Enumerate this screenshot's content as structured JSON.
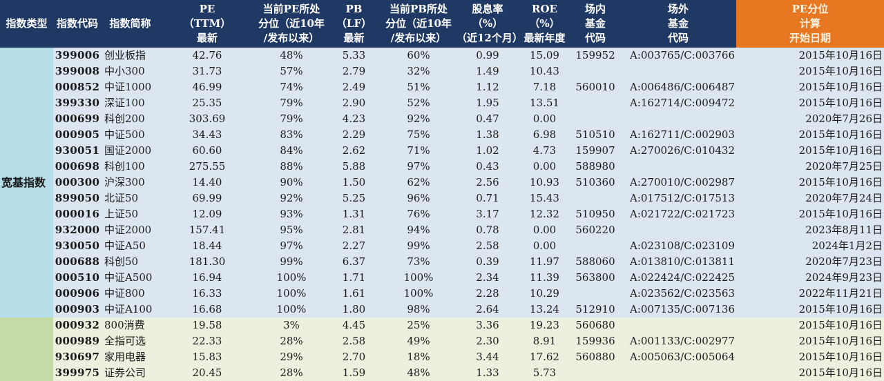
{
  "headers": [
    {
      "lines": [
        "指数类型"
      ]
    },
    {
      "lines": [
        "指数代码"
      ]
    },
    {
      "lines": [
        "指数简称"
      ]
    },
    {
      "lines": [
        "PE",
        "（TTM）",
        "最新"
      ]
    },
    {
      "lines": [
        "当前PE所处",
        "分位（近10年",
        "/发布以来）"
      ]
    },
    {
      "lines": [
        "PB",
        "（LF）",
        "最新"
      ]
    },
    {
      "lines": [
        "当前PB所处",
        "分位（近10年",
        "/发布以来）"
      ]
    },
    {
      "lines": [
        "股息率",
        "（%）",
        "（近12个月）"
      ]
    },
    {
      "lines": [
        "ROE",
        "（%）",
        "最新年度"
      ]
    },
    {
      "lines": [
        "场内",
        "基金",
        "代码"
      ]
    },
    {
      "lines": [
        "场外",
        "基金",
        "代码"
      ]
    },
    {
      "lines": [
        "PE分位",
        "计算",
        "开始日期"
      ]
    }
  ],
  "categories": {
    "broad": "宽基指数",
    "industry": ""
  },
  "rows": [
    {
      "code": "399006",
      "name": "创业板指",
      "pe": "42.76",
      "pe_pct": "48%",
      "pb": "5.33",
      "pb_pct": "60%",
      "dividend": "0.99",
      "roe": "15.09",
      "etf": "159952",
      "otc": "A:003765/C:003766",
      "start": "2015年10月16日"
    },
    {
      "code": "399008",
      "name": "中小300",
      "pe": "31.73",
      "pe_pct": "57%",
      "pb": "2.79",
      "pb_pct": "32%",
      "dividend": "1.49",
      "roe": "10.43",
      "etf": "",
      "otc": "",
      "start": "2015年10月16日"
    },
    {
      "code": "000852",
      "name": "中证1000",
      "pe": "46.99",
      "pe_pct": "74%",
      "pb": "2.49",
      "pb_pct": "51%",
      "dividend": "1.12",
      "roe": "7.18",
      "etf": "560010",
      "otc": "A:006486/C:006487",
      "start": "2015年10月16日"
    },
    {
      "code": "399330",
      "name": "深证100",
      "pe": "25.35",
      "pe_pct": "79%",
      "pb": "2.90",
      "pb_pct": "52%",
      "dividend": "1.95",
      "roe": "13.51",
      "etf": "",
      "otc": "A:162714/C:009472",
      "start": "2015年10月16日"
    },
    {
      "code": "000699",
      "name": "科创200",
      "pe": "303.69",
      "pe_pct": "79%",
      "pb": "4.23",
      "pb_pct": "92%",
      "dividend": "0.47",
      "roe": "0.00",
      "etf": "",
      "otc": "",
      "start": "2020年7月26日"
    },
    {
      "code": "000905",
      "name": "中证500",
      "pe": "34.43",
      "pe_pct": "83%",
      "pb": "2.29",
      "pb_pct": "75%",
      "dividend": "1.38",
      "roe": "6.98",
      "etf": "510510",
      "otc": "A:162711/C:002903",
      "start": "2015年10月16日"
    },
    {
      "code": "930051",
      "name": "国证2000",
      "pe": "60.60",
      "pe_pct": "84%",
      "pb": "2.62",
      "pb_pct": "71%",
      "dividend": "1.02",
      "roe": "4.73",
      "etf": "159907",
      "otc": "A:270026/C:010432",
      "start": "2015年10月16日"
    },
    {
      "code": "000698",
      "name": "科创100",
      "pe": "275.55",
      "pe_pct": "88%",
      "pb": "5.88",
      "pb_pct": "97%",
      "dividend": "0.43",
      "roe": "0.00",
      "etf": "588980",
      "otc": "",
      "start": "2020年7月25日"
    },
    {
      "code": "000300",
      "name": "沪深300",
      "pe": "14.40",
      "pe_pct": "90%",
      "pb": "1.50",
      "pb_pct": "62%",
      "dividend": "2.56",
      "roe": "10.93",
      "etf": "510360",
      "otc": "A:270010/C:002987",
      "start": "2015年10月16日"
    },
    {
      "code": "899050",
      "name": "北证50",
      "pe": "69.99",
      "pe_pct": "92%",
      "pb": "5.25",
      "pb_pct": "96%",
      "dividend": "0.71",
      "roe": "15.43",
      "etf": "",
      "otc": "A:017512/C:017513",
      "start": "2020年7月24日"
    },
    {
      "code": "000016",
      "name": "上证50",
      "pe": "12.09",
      "pe_pct": "93%",
      "pb": "1.31",
      "pb_pct": "76%",
      "dividend": "3.17",
      "roe": "12.32",
      "etf": "510950",
      "otc": "A:021722/C:021723",
      "start": "2015年10月16日"
    },
    {
      "code": "932000",
      "name": "中证2000",
      "pe": "157.41",
      "pe_pct": "95%",
      "pb": "2.81",
      "pb_pct": "94%",
      "dividend": "0.78",
      "roe": "0.00",
      "etf": "560220",
      "otc": "",
      "start": "2023年8月11日"
    },
    {
      "code": "930050",
      "name": "中证A50",
      "pe": "18.44",
      "pe_pct": "97%",
      "pb": "2.27",
      "pb_pct": "99%",
      "dividend": "2.58",
      "roe": "0.00",
      "etf": "",
      "otc": "A:023108/C:023109",
      "start": "2024年1月2日"
    },
    {
      "code": "000688",
      "name": "科创50",
      "pe": "181.30",
      "pe_pct": "99%",
      "pb": "6.37",
      "pb_pct": "73%",
      "dividend": "0.39",
      "roe": "11.97",
      "etf": "588060",
      "otc": "A:013810/C:013811",
      "start": "2020年7月23日"
    },
    {
      "code": "000510",
      "name": "中证A500",
      "pe": "16.94",
      "pe_pct": "100%",
      "pb": "1.71",
      "pb_pct": "100%",
      "dividend": "2.34",
      "roe": "11.39",
      "etf": "563800",
      "otc": "A:022424/C:022425",
      "start": "2024年9月23日"
    },
    {
      "code": "000906",
      "name": "中证800",
      "pe": "16.33",
      "pe_pct": "100%",
      "pb": "1.61",
      "pb_pct": "100%",
      "dividend": "2.28",
      "roe": "10.29",
      "etf": "",
      "otc": "A:023562/C:023563",
      "start": "2022年11月21日"
    },
    {
      "code": "000903",
      "name": "中证A100",
      "pe": "16.68",
      "pe_pct": "100%",
      "pb": "1.80",
      "pb_pct": "98%",
      "dividend": "2.64",
      "roe": "13.24",
      "etf": "512910",
      "otc": "A:007135/C:007136",
      "start": "2015年10月16日"
    },
    {
      "code": "000932",
      "name": "800消费",
      "pe": "19.58",
      "pe_pct": "3%",
      "pb": "4.45",
      "pb_pct": "25%",
      "dividend": "3.36",
      "roe": "19.23",
      "etf": "560680",
      "otc": "",
      "start": "2015年10月16日"
    },
    {
      "code": "000989",
      "name": "全指可选",
      "pe": "22.33",
      "pe_pct": "28%",
      "pb": "2.58",
      "pb_pct": "49%",
      "dividend": "2.30",
      "roe": "8.91",
      "etf": "159936",
      "otc": "A:001133/C:002977",
      "start": "2015年10月16日"
    },
    {
      "code": "930697",
      "name": "家用电器",
      "pe": "15.83",
      "pe_pct": "29%",
      "pb": "2.70",
      "pb_pct": "18%",
      "dividend": "3.44",
      "roe": "17.62",
      "etf": "560880",
      "otc": "A:005063/C:005064",
      "start": "2015年10月16日"
    },
    {
      "code": "399975",
      "name": "证券公司",
      "pe": "20.45",
      "pe_pct": "28%",
      "pb": "1.59",
      "pb_pct": "48%",
      "dividend": "1.33",
      "roe": "5.73",
      "etf": "",
      "otc": "",
      "start": "2015年10月16日"
    }
  ]
}
